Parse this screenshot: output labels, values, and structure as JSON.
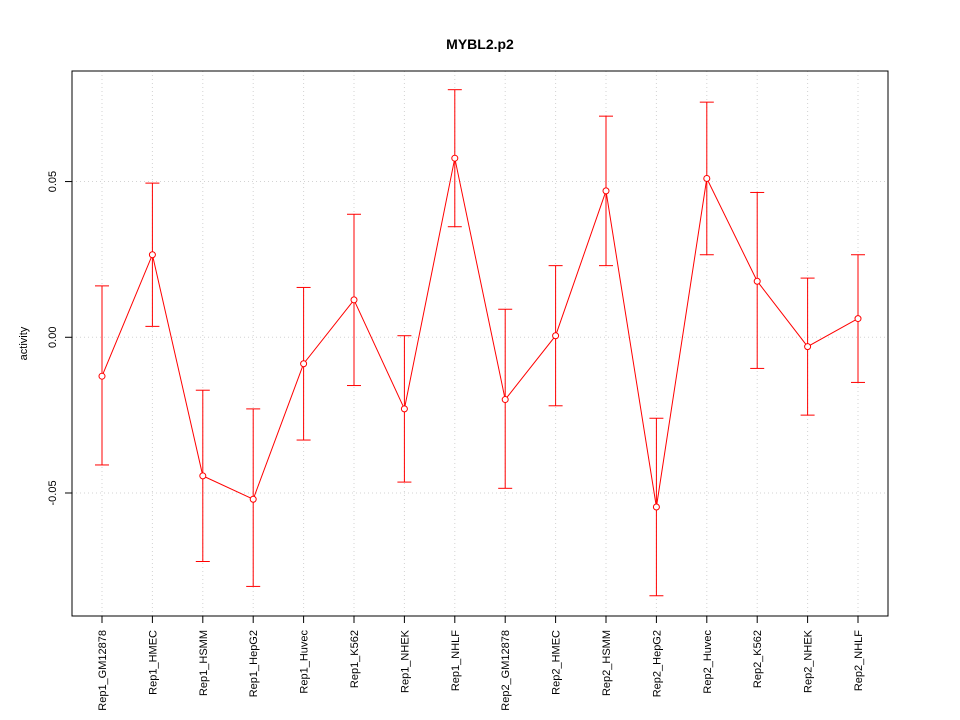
{
  "chart_data": {
    "type": "line",
    "title": "MYBL2.p2",
    "xlabel": "",
    "ylabel": "activity",
    "categories": [
      "Rep1_GM12878",
      "Rep1_HMEC",
      "Rep1_HSMM",
      "Rep1_HepG2",
      "Rep1_Huvec",
      "Rep1_K562",
      "Rep1_NHEK",
      "Rep1_NHLF",
      "Rep2_GM12878",
      "Rep2_HMEC",
      "Rep2_HSMM",
      "Rep2_HepG2",
      "Rep2_Huvec",
      "Rep2_K562",
      "Rep2_NHEK",
      "Rep2_NHLF"
    ],
    "values": [
      -0.0125,
      0.0265,
      -0.0445,
      -0.052,
      -0.0085,
      0.012,
      -0.023,
      0.0575,
      -0.02,
      0.0005,
      0.047,
      -0.0545,
      0.051,
      0.018,
      -0.003,
      0.006
    ],
    "lower": [
      -0.041,
      0.0035,
      -0.072,
      -0.08,
      -0.033,
      -0.0155,
      -0.0465,
      0.0355,
      -0.0485,
      -0.022,
      0.023,
      -0.083,
      0.0265,
      -0.01,
      -0.025,
      -0.0145
    ],
    "upper": [
      0.0165,
      0.0495,
      -0.017,
      -0.023,
      0.016,
      0.0395,
      0.0005,
      0.0795,
      0.009,
      0.023,
      0.071,
      -0.026,
      0.0755,
      0.0465,
      0.019,
      0.0265
    ],
    "ylim": [
      -0.0895,
      0.0855
    ],
    "yticks": [
      -0.05,
      0.0,
      0.05
    ],
    "ytick_labels": [
      "-0.05",
      "0.00",
      "0.05"
    ],
    "grid": true,
    "series_color": "#ff0000",
    "grid_color": "#d3d3d3"
  }
}
